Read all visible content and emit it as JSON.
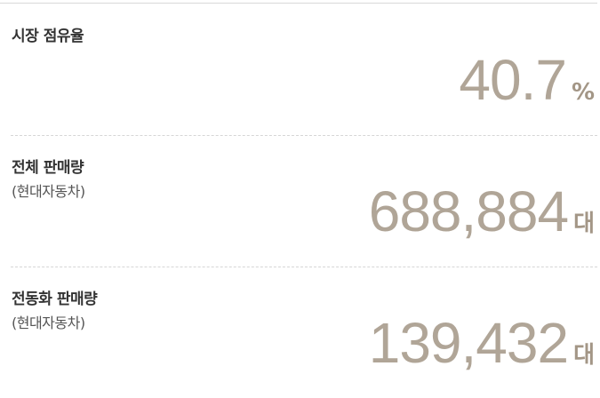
{
  "items": [
    {
      "label": "시장 점유율",
      "value": "40.7",
      "unit": "%"
    },
    {
      "label": "전체 판매량",
      "sublabel": "(현대자동차)",
      "value": "688,884",
      "unit": "대"
    },
    {
      "label": "전동화 판매량",
      "sublabel": "(현대자동차)",
      "value": "139,432",
      "unit": "대"
    }
  ]
}
